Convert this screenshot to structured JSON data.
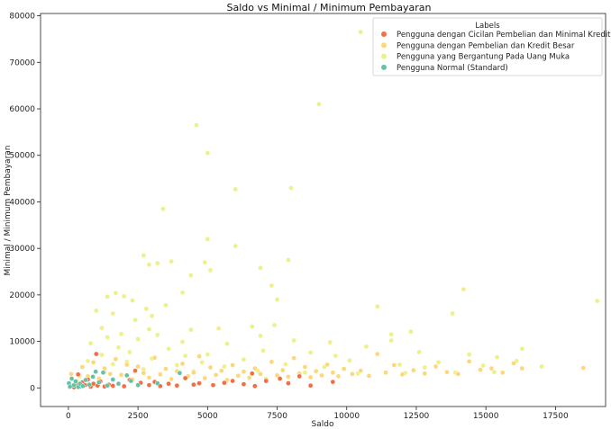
{
  "chart_data": {
    "type": "scatter",
    "title": "Saldo vs Minimal / Minimum Pembayaran",
    "xlabel": "Saldo",
    "ylabel": "Minimal / Minimum Pembayaran",
    "xlim": [
      -1000,
      19300
    ],
    "ylim": [
      -4000,
      80500
    ],
    "xticks": [
      0,
      2500,
      5000,
      7500,
      10000,
      12500,
      15000,
      17500
    ],
    "yticks": [
      0,
      10000,
      20000,
      30000,
      40000,
      50000,
      60000,
      70000,
      80000
    ],
    "grid": false,
    "legend": {
      "title": "Labels",
      "placement": "top-right"
    },
    "series": [
      {
        "name": "Pengguna dengan Cicilan Pembelian dan Minimal Kredit",
        "color": "#f46d43",
        "points": [
          [
            50,
            200
          ],
          [
            120,
            400
          ],
          [
            200,
            150
          ],
          [
            300,
            800
          ],
          [
            350,
            2900
          ],
          [
            420,
            300
          ],
          [
            500,
            1200
          ],
          [
            600,
            600
          ],
          [
            700,
            1800
          ],
          [
            800,
            250
          ],
          [
            900,
            900
          ],
          [
            1000,
            7300
          ],
          [
            1050,
            500
          ],
          [
            1150,
            1400
          ],
          [
            1300,
            300
          ],
          [
            1450,
            700
          ],
          [
            1600,
            450
          ],
          [
            1800,
            900
          ],
          [
            2000,
            350
          ],
          [
            2200,
            1700
          ],
          [
            2400,
            3700
          ],
          [
            2600,
            1100
          ],
          [
            2900,
            600
          ],
          [
            3100,
            1300
          ],
          [
            3300,
            400
          ],
          [
            3600,
            900
          ],
          [
            3900,
            500
          ],
          [
            4200,
            2100
          ],
          [
            4500,
            700
          ],
          [
            4700,
            1000
          ],
          [
            5200,
            600
          ],
          [
            5600,
            1100
          ],
          [
            5900,
            1500
          ],
          [
            6300,
            800
          ],
          [
            6600,
            3100
          ],
          [
            6700,
            400
          ],
          [
            7100,
            1500
          ],
          [
            7600,
            2000
          ],
          [
            7900,
            1000
          ],
          [
            8300,
            2500
          ],
          [
            8700,
            500
          ],
          [
            9500,
            1300
          ]
        ]
      },
      {
        "name": "Pengguna dengan Pembelian dan Kredit Besar",
        "color": "#fdd87a",
        "points": [
          [
            100,
            3000
          ],
          [
            300,
            1500
          ],
          [
            500,
            4500
          ],
          [
            700,
            2500
          ],
          [
            900,
            5500
          ],
          [
            1100,
            2000
          ],
          [
            1300,
            4200
          ],
          [
            1500,
            3000
          ],
          [
            1700,
            6200
          ],
          [
            1900,
            2800
          ],
          [
            2100,
            5000
          ],
          [
            2300,
            1800
          ],
          [
            2500,
            4600
          ],
          [
            2700,
            3200
          ],
          [
            2900,
            2200
          ],
          [
            3100,
            6500
          ],
          [
            3300,
            2900
          ],
          [
            3500,
            4100
          ],
          [
            3700,
            1900
          ],
          [
            3900,
            3600
          ],
          [
            4100,
            5200
          ],
          [
            4300,
            2500
          ],
          [
            4500,
            3300
          ],
          [
            4700,
            6800
          ],
          [
            4900,
            2100
          ],
          [
            5100,
            4400
          ],
          [
            5300,
            2800
          ],
          [
            5500,
            3700
          ],
          [
            5700,
            1700
          ],
          [
            5900,
            4900
          ],
          [
            6100,
            2600
          ],
          [
            6300,
            3500
          ],
          [
            6500,
            2200
          ],
          [
            6700,
            4200
          ],
          [
            6900,
            3000
          ],
          [
            7100,
            1900
          ],
          [
            7300,
            5600
          ],
          [
            7500,
            2700
          ],
          [
            7700,
            3800
          ],
          [
            7900,
            2400
          ],
          [
            8100,
            6400
          ],
          [
            8300,
            3100
          ],
          [
            8500,
            4500
          ],
          [
            8700,
            2300
          ],
          [
            8900,
            3600
          ],
          [
            9100,
            2700
          ],
          [
            9300,
            5000
          ],
          [
            9500,
            3300
          ],
          [
            9700,
            2500
          ],
          [
            9900,
            4100
          ],
          [
            10200,
            3000
          ],
          [
            10500,
            3700
          ],
          [
            10800,
            2600
          ],
          [
            11100,
            7300
          ],
          [
            11400,
            3300
          ],
          [
            11700,
            4900
          ],
          [
            12000,
            2900
          ],
          [
            12400,
            3800
          ],
          [
            12800,
            3100
          ],
          [
            13200,
            4600
          ],
          [
            13600,
            3400
          ],
          [
            14000,
            3000
          ],
          [
            14400,
            5700
          ],
          [
            14800,
            3900
          ],
          [
            15200,
            4200
          ],
          [
            15600,
            3300
          ],
          [
            16000,
            5300
          ],
          [
            16300,
            4200
          ],
          [
            18500,
            4300
          ]
        ]
      },
      {
        "name": "Pengguna yang Bergantung Pada Uang Muka",
        "color": "#eef08a",
        "points": [
          [
            10500,
            76500
          ],
          [
            9000,
            61000
          ],
          [
            4600,
            56500
          ],
          [
            5000,
            50500
          ],
          [
            8000,
            43000
          ],
          [
            6000,
            42700
          ],
          [
            3400,
            38500
          ],
          [
            5000,
            32000
          ],
          [
            6000,
            30500
          ],
          [
            2700,
            28500
          ],
          [
            3700,
            27200
          ],
          [
            4900,
            27000
          ],
          [
            3200,
            26800
          ],
          [
            2900,
            26500
          ],
          [
            7900,
            27500
          ],
          [
            5100,
            25300
          ],
          [
            6900,
            25800
          ],
          [
            4400,
            24200
          ],
          [
            7300,
            22000
          ],
          [
            14200,
            21200
          ],
          [
            1700,
            20400
          ],
          [
            4100,
            20500
          ],
          [
            1400,
            19600
          ],
          [
            2000,
            19700
          ],
          [
            2300,
            18800
          ],
          [
            7500,
            19000
          ],
          [
            19000,
            18700
          ],
          [
            3500,
            17800
          ],
          [
            11100,
            17500
          ],
          [
            2800,
            17000
          ],
          [
            1000,
            16600
          ],
          [
            1600,
            16000
          ],
          [
            13800,
            16000
          ],
          [
            3000,
            15500
          ],
          [
            2400,
            14600
          ],
          [
            7400,
            13500
          ],
          [
            6600,
            13200
          ],
          [
            1200,
            12900
          ],
          [
            5400,
            12800
          ],
          [
            2900,
            12600
          ],
          [
            4400,
            12500
          ],
          [
            12300,
            12100
          ],
          [
            1900,
            11600
          ],
          [
            11600,
            11500
          ],
          [
            3200,
            11400
          ],
          [
            6900,
            11200
          ],
          [
            1400,
            10900
          ],
          [
            2500,
            10500
          ],
          [
            8100,
            10200
          ],
          [
            9400,
            9800
          ],
          [
            4100,
            9900
          ],
          [
            800,
            9600
          ],
          [
            5700,
            9500
          ],
          [
            11600,
            10200
          ],
          [
            1800,
            8700
          ],
          [
            3600,
            8400
          ],
          [
            7000,
            8000
          ],
          [
            10700,
            8900
          ],
          [
            16300,
            8400
          ],
          [
            2200,
            7700
          ],
          [
            5000,
            7200
          ],
          [
            8700,
            7600
          ],
          [
            12600,
            7700
          ],
          [
            1200,
            7100
          ],
          [
            4200,
            6900
          ],
          [
            9600,
            6900
          ],
          [
            14400,
            7200
          ],
          [
            3000,
            6300
          ],
          [
            6300,
            6100
          ],
          [
            15400,
            6600
          ],
          [
            700,
            5800
          ],
          [
            2100,
            5600
          ],
          [
            4800,
            5500
          ],
          [
            10100,
            5900
          ],
          [
            13300,
            5500
          ],
          [
            16100,
            5800
          ],
          [
            1600,
            5100
          ],
          [
            3900,
            4900
          ],
          [
            7800,
            5100
          ],
          [
            11900,
            5000
          ],
          [
            14900,
            4800
          ],
          [
            5600,
            4600
          ],
          [
            9200,
            4500
          ],
          [
            12800,
            4400
          ],
          [
            17000,
            4600
          ],
          [
            400,
            2500
          ],
          [
            1300,
            3400
          ],
          [
            2700,
            4000
          ],
          [
            4500,
            3600
          ],
          [
            6800,
            3700
          ],
          [
            8500,
            3300
          ],
          [
            10400,
            3100
          ],
          [
            12100,
            3200
          ],
          [
            13900,
            3300
          ],
          [
            15300,
            3400
          ]
        ]
      },
      {
        "name": "Pengguna Normal (Standard)",
        "color": "#66c2a5",
        "points": [
          [
            20,
            1000
          ],
          [
            60,
            300
          ],
          [
            120,
            2000
          ],
          [
            200,
            600
          ],
          [
            260,
            1400
          ],
          [
            350,
            200
          ],
          [
            420,
            900
          ],
          [
            520,
            400
          ],
          [
            620,
            1700
          ],
          [
            750,
            700
          ],
          [
            880,
            2400
          ],
          [
            980,
            3500
          ],
          [
            1100,
            1200
          ],
          [
            1250,
            3300
          ],
          [
            1400,
            500
          ],
          [
            1600,
            1800
          ],
          [
            1800,
            900
          ],
          [
            2100,
            2700
          ],
          [
            2250,
            1500
          ],
          [
            2500,
            600
          ],
          [
            3200,
            1000
          ],
          [
            4000,
            3200
          ]
        ]
      }
    ]
  }
}
